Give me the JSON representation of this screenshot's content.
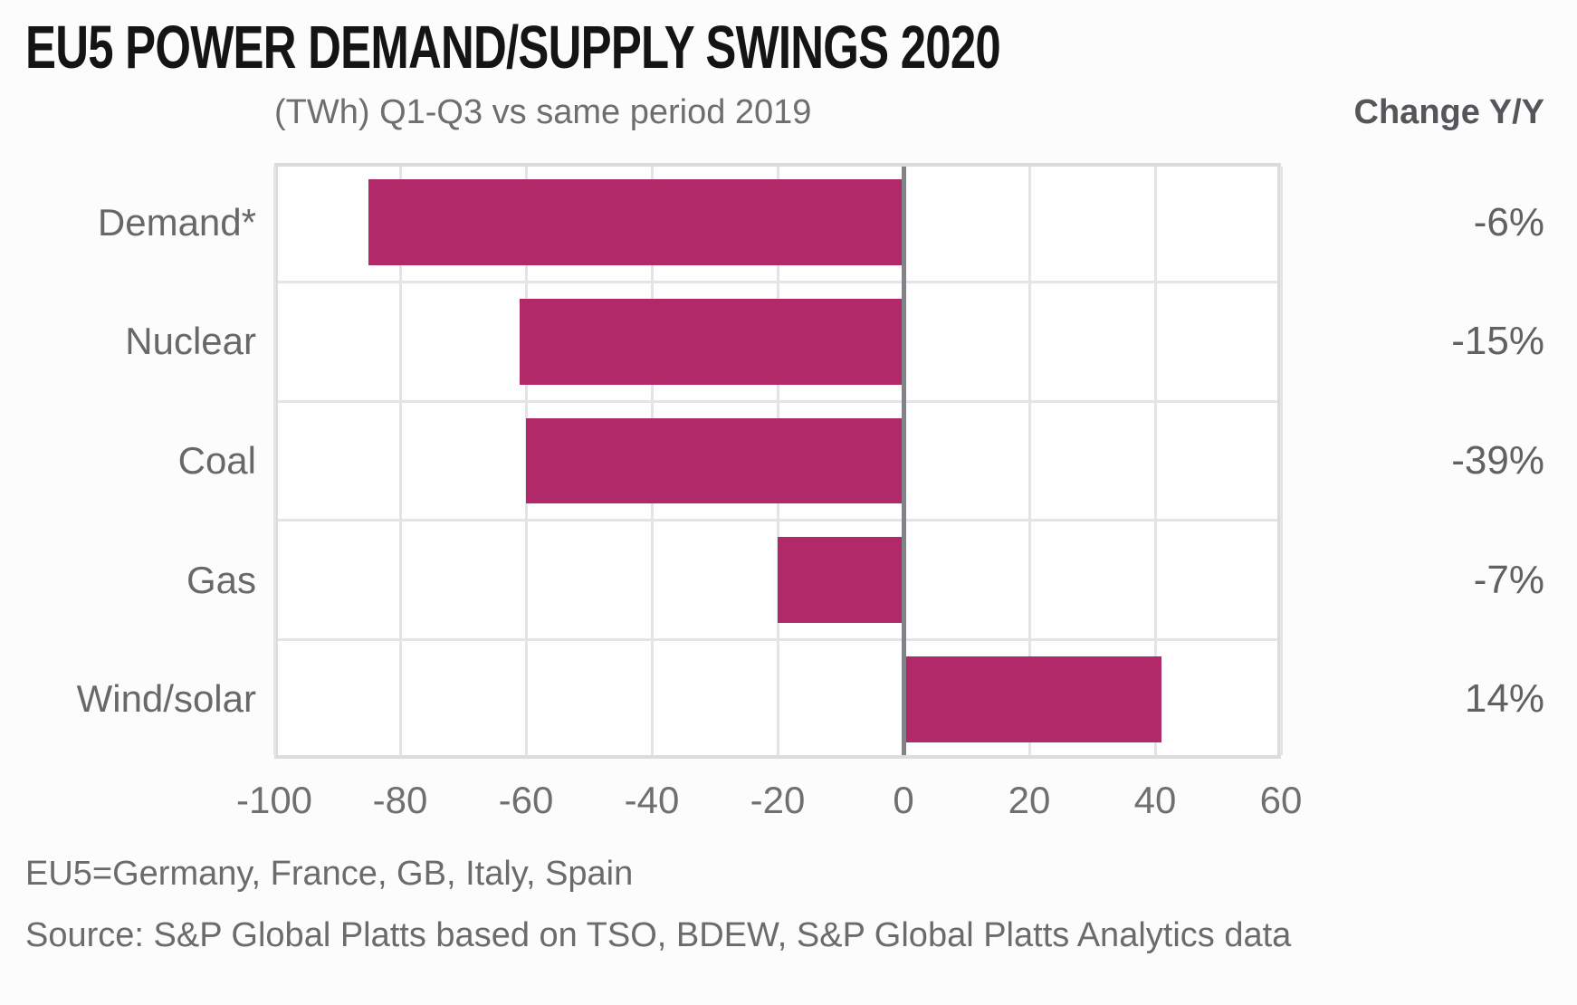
{
  "title": "EU5 POWER DEMAND/SUPPLY SWINGS 2020",
  "subtitle": "(TWh) Q1-Q3 vs same period 2019",
  "change_header": "Change Y/Y",
  "footnotes": {
    "definition": "EU5=Germany, France, GB, Italy, Spain",
    "source": "Source: S&P Global Platts based on TSO, BDEW, S&P Global Platts Analytics data"
  },
  "colors": {
    "bar": "#b12968",
    "background": "#fcfcfc",
    "gridline": "#e4e4e6",
    "plot_border": "#dcdcde",
    "zero_line": "#828386",
    "title_text": "#141414",
    "muted_text": "#6b6b6d"
  },
  "chart_data": {
    "type": "bar",
    "orientation": "horizontal",
    "title": "EU5 POWER DEMAND/SUPPLY SWINGS 2020",
    "subtitle": "(TWh) Q1-Q3 vs same period 2019",
    "xlabel": "TWh",
    "categories": [
      "Demand*",
      "Nuclear",
      "Coal",
      "Gas",
      "Wind/solar"
    ],
    "values_twh": [
      -85,
      -61,
      -60,
      -20,
      41
    ],
    "change_yoy_labels": [
      "-6%",
      "-15%",
      "-39%",
      "-7%",
      "14%"
    ],
    "change_yoy_header": "Change Y/Y",
    "xlim": [
      -100,
      60
    ],
    "xticks": [
      -100,
      -80,
      -60,
      -40,
      -20,
      0,
      20,
      40,
      60
    ],
    "grid": true,
    "legend": false,
    "bar_color": "#b12968"
  }
}
